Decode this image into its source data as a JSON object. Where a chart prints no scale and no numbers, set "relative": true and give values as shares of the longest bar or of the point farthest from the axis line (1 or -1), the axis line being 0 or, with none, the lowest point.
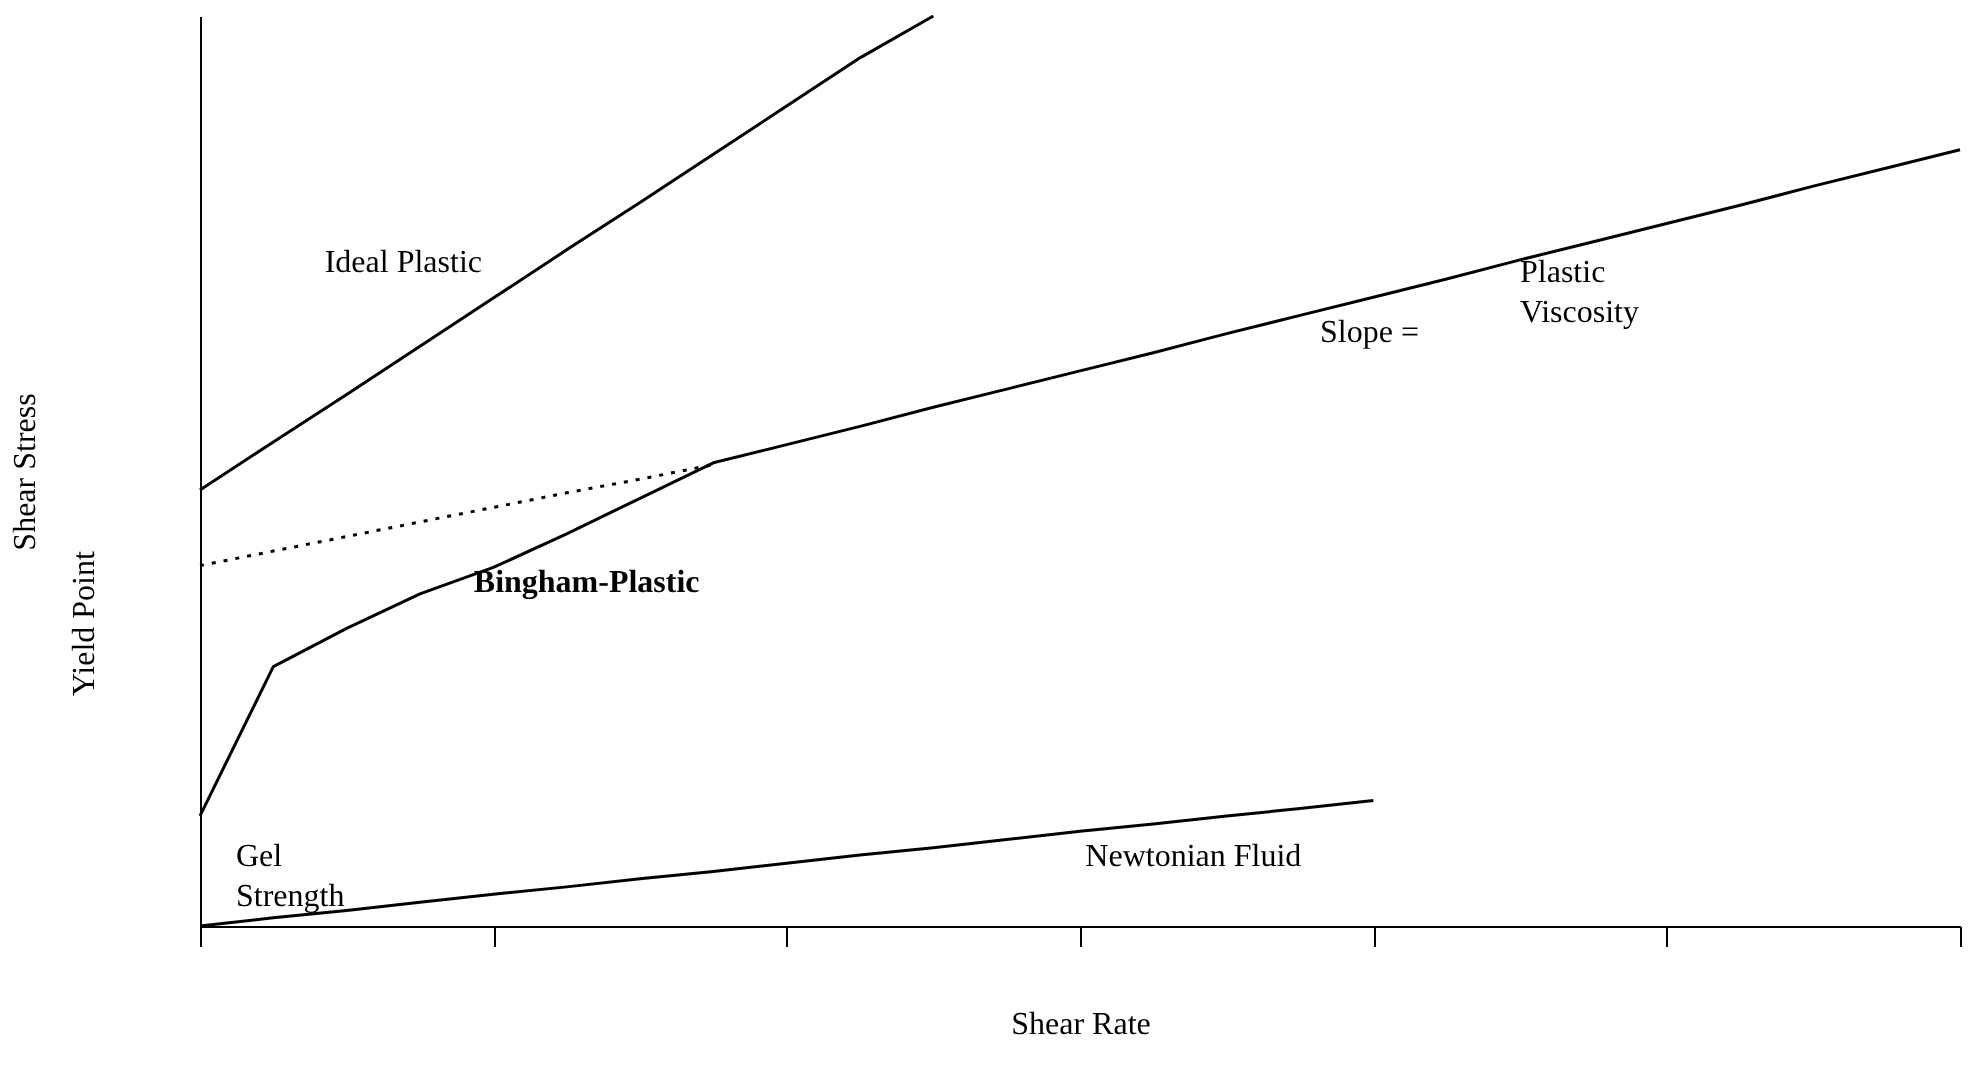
{
  "chart_data": {
    "type": "line",
    "relative": true,
    "xlabel": "Shear Rate",
    "ylabel": "Shear Stress",
    "categories": [
      null,
      null,
      null,
      null,
      null,
      null,
      null,
      null,
      null,
      null,
      null,
      null,
      null,
      null,
      null,
      null,
      null,
      null,
      null,
      null,
      null,
      null,
      null,
      null,
      null
    ],
    "tick_labels": false,
    "line_style": "solid",
    "series": [
      {
        "name": "Ideal Plastic",
        "color": "#000000",
        "values": [
          0.479,
          0.532,
          0.584,
          0.637,
          0.69,
          0.743,
          0.795,
          0.848,
          0.901,
          0.954,
          1.0,
          null,
          null,
          null,
          null,
          null,
          null,
          null,
          null,
          null,
          null,
          null,
          null,
          null,
          null
        ]
      },
      {
        "name": "Bingham-Plastic",
        "color": "#000000",
        "values": [
          0.121,
          0.285,
          0.327,
          0.365,
          0.394,
          0.431,
          0.47,
          0.509,
          0.529,
          0.549,
          0.57,
          0.59,
          0.61,
          0.63,
          0.651,
          0.671,
          0.691,
          0.711,
          0.732,
          0.752,
          0.772,
          0.792,
          0.813,
          0.833,
          0.853
        ]
      },
      {
        "color": "#000000",
        "line_style": "dotted",
        "values": [
          0.396,
          0.412,
          0.428,
          0.444,
          0.46,
          0.476,
          0.491,
          0.507,
          null,
          null,
          null,
          null,
          null,
          null,
          null,
          null,
          null,
          null,
          null,
          null,
          null,
          null,
          null,
          null,
          null
        ]
      },
      {
        "name": "Newtonian Fluid",
        "color": "#000000",
        "values": [
          0,
          0.009,
          0.017,
          0.026,
          0.035,
          0.043,
          0.052,
          0.06,
          0.069,
          0.078,
          0.086,
          0.095,
          0.104,
          0.112,
          0.121,
          0.129,
          0.138,
          null,
          null,
          null,
          null,
          null,
          null,
          null,
          null
        ]
      }
    ],
    "annotations": [
      "Slope =",
      "Plastic Viscosity",
      "Gel Strength",
      "Yield Point"
    ]
  }
}
